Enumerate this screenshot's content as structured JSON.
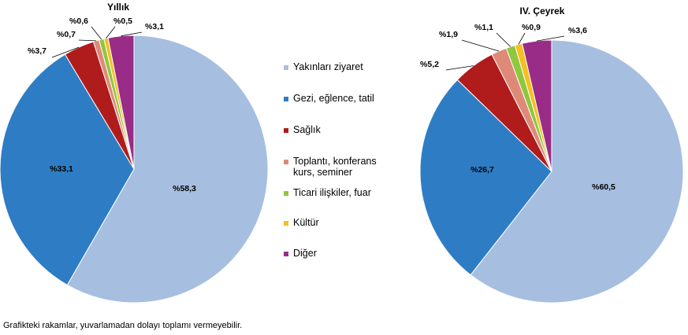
{
  "chart_data": [
    {
      "type": "pie",
      "title": "Yıllık",
      "labels": [
        "Yakınları ziyaret",
        "Gezi, eğlence, tatil",
        "Sağlık",
        "Toplantı, konferans kurs, seminer",
        "Ticari ilişkiler, fuar",
        "Kültür",
        "Diğer"
      ],
      "values": [
        58.3,
        33.1,
        3.7,
        0.7,
        0.6,
        0.5,
        3.1
      ],
      "value_labels": [
        "%58,3",
        "%33,1",
        "%3,7",
        "%0,7",
        "%0,6",
        "%0,5",
        "%3,1"
      ]
    },
    {
      "type": "pie",
      "title": "IV. Çeyrek",
      "labels": [
        "Yakınları ziyaret",
        "Gezi, eğlence, tatil",
        "Sağlık",
        "Toplantı, konferans kurs, seminer",
        "Ticari ilişkiler, fuar",
        "Kültür",
        "Diğer"
      ],
      "values": [
        60.5,
        26.7,
        5.2,
        1.9,
        1.1,
        0.9,
        3.6
      ],
      "value_labels": [
        "%60,5",
        "%26,7",
        "%5,2",
        "%1,9",
        "%1,1",
        "%0,9",
        "%3,6"
      ]
    }
  ],
  "legend": {
    "placement": "center",
    "items": [
      {
        "label": "Yakınları ziyaret",
        "color": "#a6bee0"
      },
      {
        "label": "Gezi, eğlence, tatil",
        "color": "#2e7dc4"
      },
      {
        "label": "Sağlık",
        "color": "#b01c1c"
      },
      {
        "label": "Toplantı, konferans\nkurs, seminer",
        "color": "#df8a78"
      },
      {
        "label": "Ticari ilişkiler, fuar",
        "color": "#8fc73e"
      },
      {
        "label": "Kültür",
        "color": "#f5c020"
      },
      {
        "label": "Diğer",
        "color": "#992c86"
      }
    ]
  },
  "footnote": "Grafikteki rakamlar, yuvarlamadan dolayı toplamı vermeyebilir."
}
